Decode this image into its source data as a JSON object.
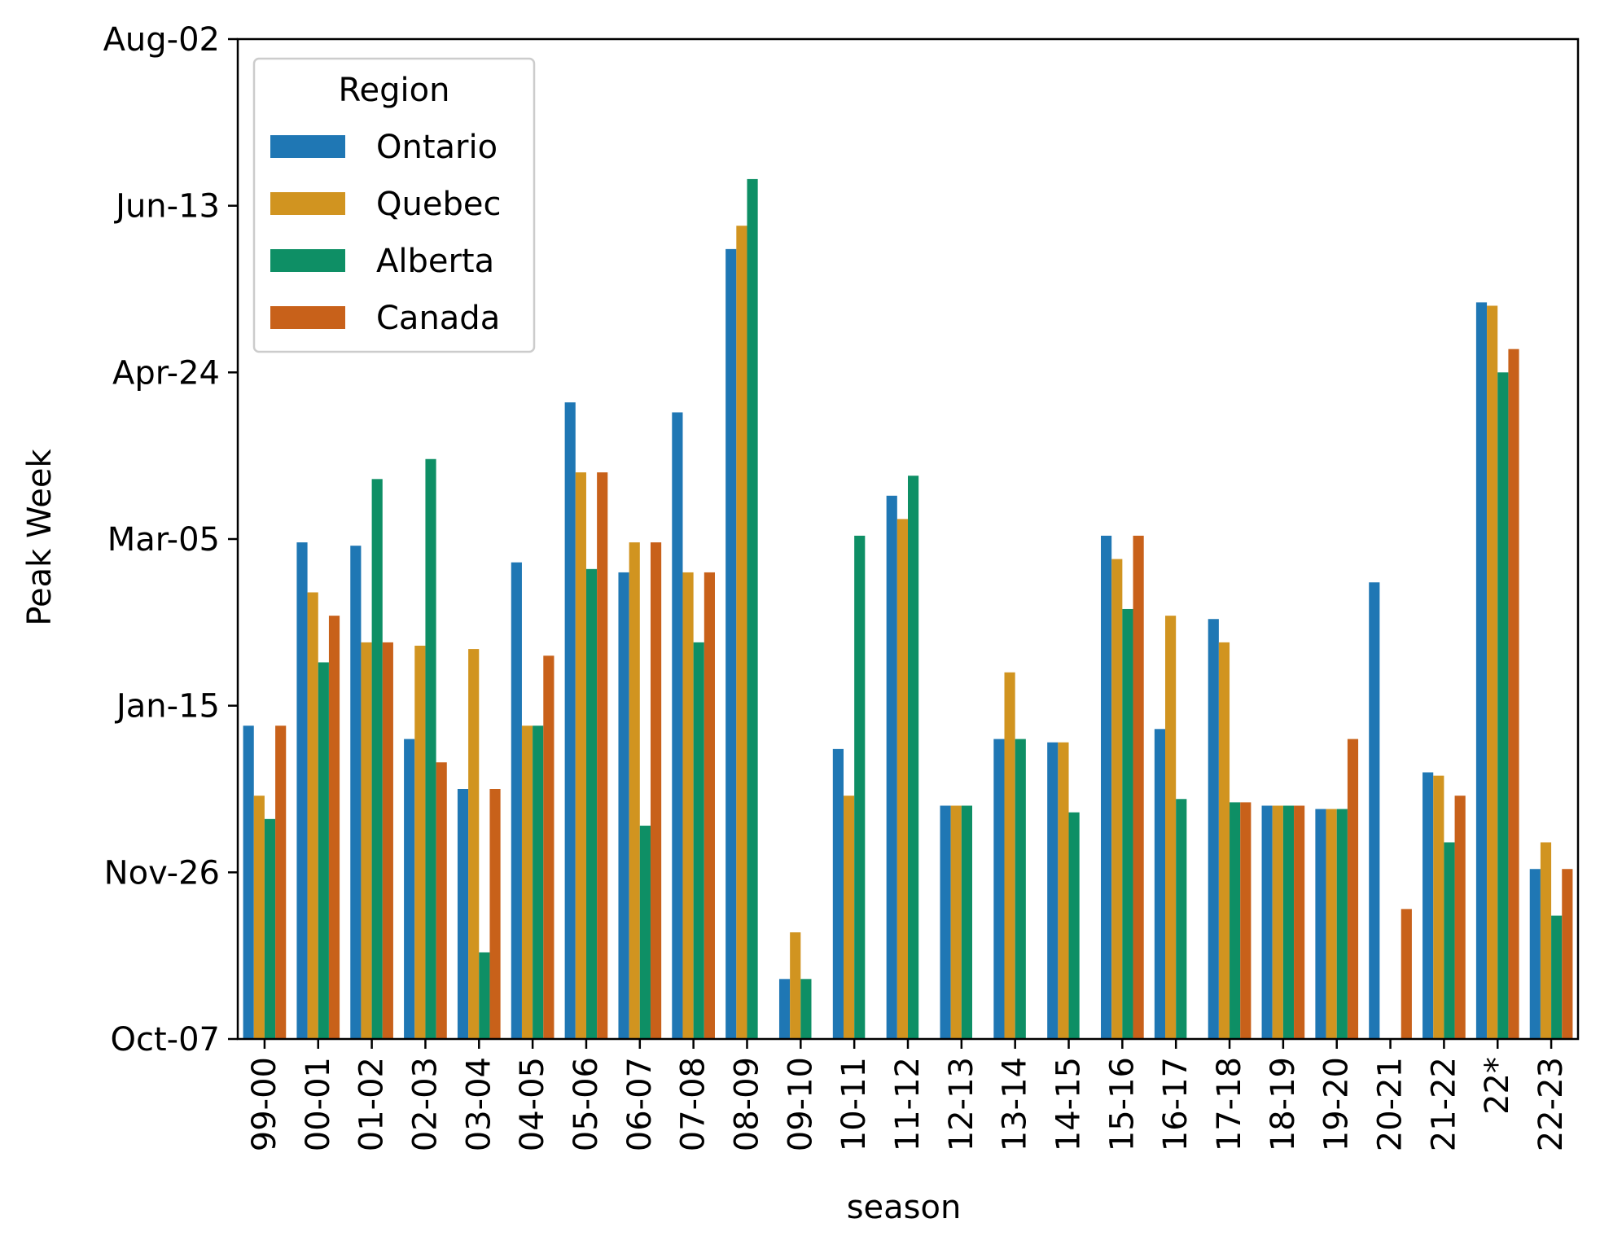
{
  "chart_data": {
    "type": "bar",
    "xlabel": "season",
    "ylabel": "Peak Week",
    "y_unit": "days after Oct-07",
    "ylim": [
      0,
      300
    ],
    "y_ticks": [
      {
        "value": 0,
        "label": "Oct-07"
      },
      {
        "value": 50,
        "label": "Nov-26"
      },
      {
        "value": 100,
        "label": "Jan-15"
      },
      {
        "value": 150,
        "label": "Mar-05"
      },
      {
        "value": 200,
        "label": "Apr-24"
      },
      {
        "value": 250,
        "label": "Jun-13"
      },
      {
        "value": 300,
        "label": "Aug-02"
      }
    ],
    "categories": [
      "99-00",
      "00-01",
      "01-02",
      "02-03",
      "03-04",
      "04-05",
      "05-06",
      "06-07",
      "07-08",
      "08-09",
      "09-10",
      "10-11",
      "11-12",
      "12-13",
      "13-14",
      "14-15",
      "15-16",
      "16-17",
      "17-18",
      "18-19",
      "19-20",
      "20-21",
      "21-22",
      "22*",
      "22-23"
    ],
    "legend": {
      "title": "Region",
      "position": "top-left"
    },
    "grid": false,
    "series": [
      {
        "name": "Ontario",
        "color": "#1f77b4",
        "values": [
          94,
          149,
          148,
          90,
          75,
          143,
          191,
          140,
          188,
          237,
          18,
          87,
          163,
          70,
          90,
          89,
          151,
          93,
          126,
          70,
          69,
          137,
          80,
          221,
          51
        ]
      },
      {
        "name": "Quebec",
        "color": "#d19420",
        "values": [
          73,
          134,
          119,
          118,
          117,
          94,
          170,
          149,
          140,
          244,
          32,
          73,
          156,
          70,
          110,
          89,
          144,
          127,
          119,
          70,
          69,
          null,
          79,
          220,
          59
        ]
      },
      {
        "name": "Alberta",
        "color": "#0e8f65",
        "values": [
          66,
          113,
          168,
          174,
          26,
          94,
          141,
          64,
          119,
          258,
          18,
          151,
          169,
          70,
          90,
          68,
          129,
          72,
          71,
          70,
          69,
          null,
          59,
          200,
          37
        ]
      },
      {
        "name": "Canada",
        "color": "#c8611a",
        "values": [
          94,
          127,
          119,
          83,
          75,
          115,
          170,
          149,
          140,
          null,
          null,
          null,
          null,
          null,
          null,
          null,
          151,
          null,
          71,
          70,
          90,
          39,
          73,
          207,
          51
        ]
      }
    ]
  }
}
